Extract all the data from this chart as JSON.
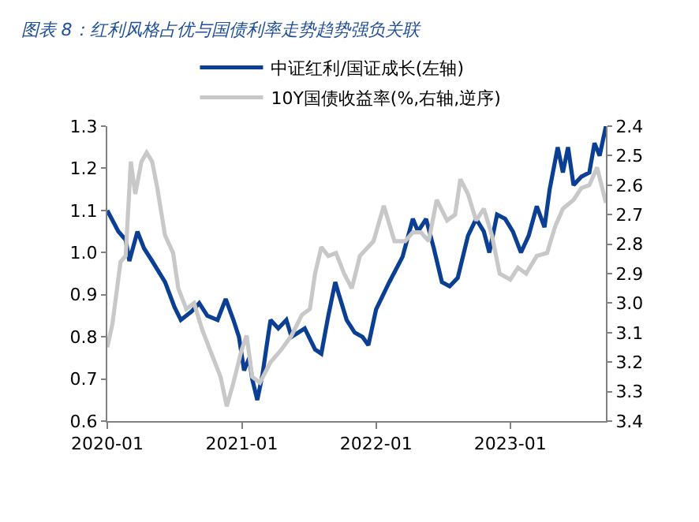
{
  "chart_data": {
    "type": "line",
    "title": "图表 8：红利风格占优与国债利率走势趋势强负关联",
    "series": [
      {
        "name": "中证红利/国证成长(左轴)",
        "color": "#0b3f94",
        "x": [
          "2020-01-01",
          "2020-01-31",
          "2020-02-20",
          "2020-03-01",
          "2020-03-23",
          "2020-04-10",
          "2020-05-02",
          "2020-06-06",
          "2020-07-02",
          "2020-07-19",
          "2020-08-17",
          "2020-09-07",
          "2020-09-29",
          "2020-10-27",
          "2020-11-18",
          "2020-12-09",
          "2020-12-24",
          "2021-01-07",
          "2021-01-21",
          "2021-01-29",
          "2021-02-12",
          "2021-02-26",
          "2021-03-13",
          "2021-03-20",
          "2021-04-10",
          "2021-05-02",
          "2021-05-16",
          "2021-06-21",
          "2021-07-19",
          "2021-08-05",
          "2021-08-24",
          "2021-09-12",
          "2021-09-22",
          "2021-10-13",
          "2021-11-04",
          "2021-11-25",
          "2021-12-11",
          "2022-01-01",
          "2022-02-06",
          "2022-03-14",
          "2022-04-11",
          "2022-04-25",
          "2022-05-17",
          "2022-06-07",
          "2022-06-29",
          "2022-07-20",
          "2022-08-11",
          "2022-09-08",
          "2022-09-30",
          "2022-10-21",
          "2022-11-05",
          "2022-11-26",
          "2022-12-18",
          "2023-01-08",
          "2023-01-30",
          "2023-02-20",
          "2023-03-14",
          "2023-04-04",
          "2023-04-18",
          "2023-05-10",
          "2023-05-24",
          "2023-06-07",
          "2023-06-22",
          "2023-07-13",
          "2023-08-04",
          "2023-08-18",
          "2023-09-01",
          "2023-09-18"
        ],
        "values": [
          1.1,
          1.05,
          1.03,
          0.98,
          1.05,
          1.01,
          0.98,
          0.93,
          0.87,
          0.84,
          0.86,
          0.88,
          0.85,
          0.84,
          0.89,
          0.84,
          0.8,
          0.72,
          0.75,
          0.7,
          0.65,
          0.71,
          0.8,
          0.84,
          0.82,
          0.84,
          0.8,
          0.82,
          0.77,
          0.76,
          0.85,
          0.93,
          0.9,
          0.84,
          0.81,
          0.8,
          0.78,
          0.865,
          0.93,
          0.99,
          1.08,
          1.05,
          1.08,
          1.01,
          0.93,
          0.92,
          0.94,
          1.04,
          1.08,
          1.05,
          1.0,
          1.09,
          1.08,
          1.05,
          1.0,
          1.04,
          1.11,
          1.06,
          1.15,
          1.25,
          1.19,
          1.25,
          1.16,
          1.18,
          1.19,
          1.26,
          1.23,
          1.3
        ]
      },
      {
        "name": "10Y国债收益率(%,右轴,逆序)",
        "color": "#c8c8c8",
        "axis": "y2",
        "x": [
          "2020-01-01",
          "2020-01-15",
          "2020-02-06",
          "2020-02-20",
          "2020-03-05",
          "2020-03-17",
          "2020-04-03",
          "2020-04-17",
          "2020-05-02",
          "2020-05-16",
          "2020-06-06",
          "2020-06-28",
          "2020-07-12",
          "2020-08-03",
          "2020-08-24",
          "2020-09-15",
          "2020-10-13",
          "2020-11-04",
          "2020-11-21",
          "2020-12-09",
          "2020-12-31",
          "2021-01-14",
          "2021-01-29",
          "2021-02-19",
          "2021-03-20",
          "2021-04-17",
          "2021-05-16",
          "2021-06-13",
          "2021-07-05",
          "2021-07-19",
          "2021-08-05",
          "2021-08-24",
          "2021-09-14",
          "2021-10-06",
          "2021-10-27",
          "2021-11-18",
          "2021-12-25",
          "2022-01-22",
          "2022-02-20",
          "2022-03-21",
          "2022-04-11",
          "2022-05-03",
          "2022-05-24",
          "2022-06-15",
          "2022-07-13",
          "2022-08-04",
          "2022-08-18",
          "2022-09-08",
          "2022-09-30",
          "2022-10-21",
          "2022-11-12",
          "2022-12-03",
          "2023-01-01",
          "2023-01-22",
          "2023-02-13",
          "2023-03-14",
          "2023-04-11",
          "2023-05-03",
          "2023-05-24",
          "2023-06-22",
          "2023-07-13",
          "2023-08-04",
          "2023-08-25",
          "2023-09-08",
          "2023-09-18"
        ],
        "values": [
          3.15,
          3.07,
          2.86,
          2.84,
          2.52,
          2.63,
          2.52,
          2.49,
          2.52,
          2.61,
          2.77,
          2.83,
          2.95,
          3.02,
          3.0,
          3.09,
          3.18,
          3.25,
          3.35,
          3.27,
          3.16,
          3.11,
          3.25,
          3.27,
          3.2,
          3.16,
          3.11,
          3.04,
          3.02,
          2.9,
          2.81,
          2.84,
          2.83,
          2.9,
          2.95,
          2.84,
          2.79,
          2.67,
          2.79,
          2.79,
          2.76,
          2.76,
          2.79,
          2.65,
          2.72,
          2.7,
          2.58,
          2.63,
          2.72,
          2.68,
          2.77,
          2.9,
          2.92,
          2.88,
          2.9,
          2.84,
          2.83,
          2.74,
          2.68,
          2.65,
          2.61,
          2.6,
          2.54,
          2.61,
          2.66
        ]
      }
    ],
    "xlim": [
      "2020-01-01",
      "2023-09-18"
    ],
    "xticks": [
      "2020-01",
      "2021-01",
      "2022-01",
      "2023-01"
    ],
    "ylim": [
      0.6,
      1.3
    ],
    "yticks": [
      0.6,
      0.7,
      0.8,
      0.9,
      {
        "value": 1,
        "label": "1.0"
      },
      1.1,
      1.2,
      1.3
    ],
    "y2lim": [
      3.4,
      2.4
    ],
    "y2ticks": [
      2.4,
      2.5,
      2.6,
      2.7,
      2.8,
      2.9,
      {
        "value": 3,
        "label": "3.0"
      },
      3.1,
      3.2,
      3.3,
      3.4
    ],
    "legend": "top",
    "marker": "none",
    "line_style": "solid"
  }
}
